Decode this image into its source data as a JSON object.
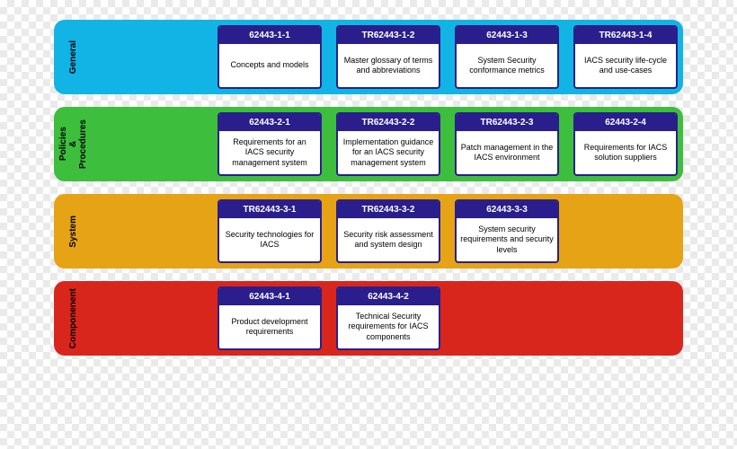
{
  "card_border_color": "#2a1e8c",
  "card_head_bg": "#2a1e8c",
  "card_head_text": "#ffffff",
  "card_body_bg": "#ffffff",
  "card_body_text": "#000000",
  "row_label_color": "#000000",
  "tiers": [
    {
      "id": "general",
      "label": "General",
      "bg": "#12b4e6",
      "cards": [
        {
          "code": "62443-1-1",
          "text": "Concepts and models"
        },
        {
          "code": "TR62443-1-2",
          "text": "Master glossary of terms and abbreviations"
        },
        {
          "code": "62443-1-3",
          "text": "System Security conformance metrics"
        },
        {
          "code": "TR62443-1-4",
          "text": "IACS security life-cycle and use-cases"
        }
      ]
    },
    {
      "id": "policies",
      "label": "Policies\n&\nProcedures",
      "bg": "#3dbf3d",
      "cards": [
        {
          "code": "62443-2-1",
          "text": "Requirements for an IACS security management system"
        },
        {
          "code": "TR62443-2-2",
          "text": "Implementation guidance for an IACS security management system"
        },
        {
          "code": "TR62443-2-3",
          "text": "Patch management in the IACS environment"
        },
        {
          "code": "62443-2-4",
          "text": "Requirements for IACS solution suppliers"
        }
      ]
    },
    {
      "id": "system",
      "label": "System",
      "bg": "#e6a316",
      "cards": [
        {
          "code": "TR62443-3-1",
          "text": "Security technologies for IACS"
        },
        {
          "code": "TR62443-3-2",
          "text": "Security risk assessment and system design"
        },
        {
          "code": "62443-3-3",
          "text": "System security requirements and security levels"
        }
      ]
    },
    {
      "id": "component",
      "label": "Componenent",
      "bg": "#d9261c",
      "cards": [
        {
          "code": "62443-4-1",
          "text": "Product development requirements"
        },
        {
          "code": "62443-4-2",
          "text": "Technical Security requirements for IACS components"
        }
      ]
    }
  ]
}
